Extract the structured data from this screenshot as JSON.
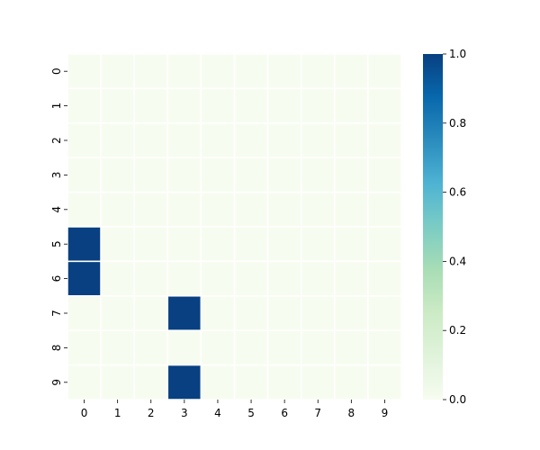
{
  "chart_data": {
    "type": "heatmap",
    "title": "",
    "xlabel": "",
    "ylabel": "",
    "x_categories": [
      "0",
      "1",
      "2",
      "3",
      "4",
      "5",
      "6",
      "7",
      "8",
      "9"
    ],
    "y_categories": [
      "0",
      "1",
      "2",
      "3",
      "4",
      "5",
      "6",
      "7",
      "8",
      "9"
    ],
    "values": [
      [
        0,
        0,
        0,
        0,
        0,
        0,
        0,
        0,
        0,
        0
      ],
      [
        0,
        0,
        0,
        0,
        0,
        0,
        0,
        0,
        0,
        0
      ],
      [
        0,
        0,
        0,
        0,
        0,
        0,
        0,
        0,
        0,
        0
      ],
      [
        0,
        0,
        0,
        0,
        0,
        0,
        0,
        0,
        0,
        0
      ],
      [
        0,
        0,
        0,
        0,
        0,
        0,
        0,
        0,
        0,
        0
      ],
      [
        1,
        0,
        0,
        0,
        0,
        0,
        0,
        0,
        0,
        0
      ],
      [
        1,
        0,
        0,
        0,
        0,
        0,
        0,
        0,
        0,
        0
      ],
      [
        0,
        0,
        0,
        1,
        0,
        0,
        0,
        0,
        0,
        0
      ],
      [
        0,
        0,
        0,
        0,
        0,
        0,
        0,
        0,
        0,
        0
      ],
      [
        0,
        0,
        0,
        1,
        0,
        0,
        0,
        0,
        0,
        0
      ]
    ],
    "color_range": [
      0,
      1
    ],
    "colormap": "GnBu",
    "colorbar": {
      "ticks": [
        0.0,
        0.2,
        0.4,
        0.6,
        0.8,
        1.0
      ],
      "tick_labels": [
        "0.0",
        "0.2",
        "0.4",
        "0.6",
        "0.8",
        "1.0"
      ],
      "placement": "right"
    },
    "colors": {
      "low": "#f7fcf0",
      "high": "#084081",
      "cell_border": "#ffffff",
      "text": "#000000"
    }
  }
}
